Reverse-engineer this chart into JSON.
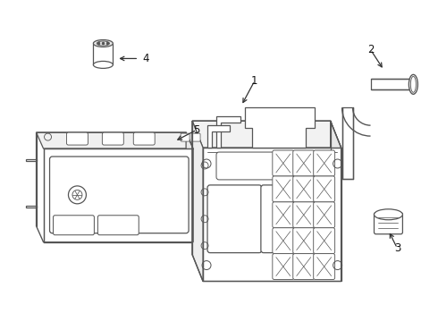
{
  "background_color": "#ffffff",
  "line_color": "#555555",
  "line_width": 0.9,
  "fig_width": 4.9,
  "fig_height": 3.6,
  "dpi": 100,
  "arrow_color": "#333333",
  "label_color": "#111111",
  "label_fontsize": 8.5
}
